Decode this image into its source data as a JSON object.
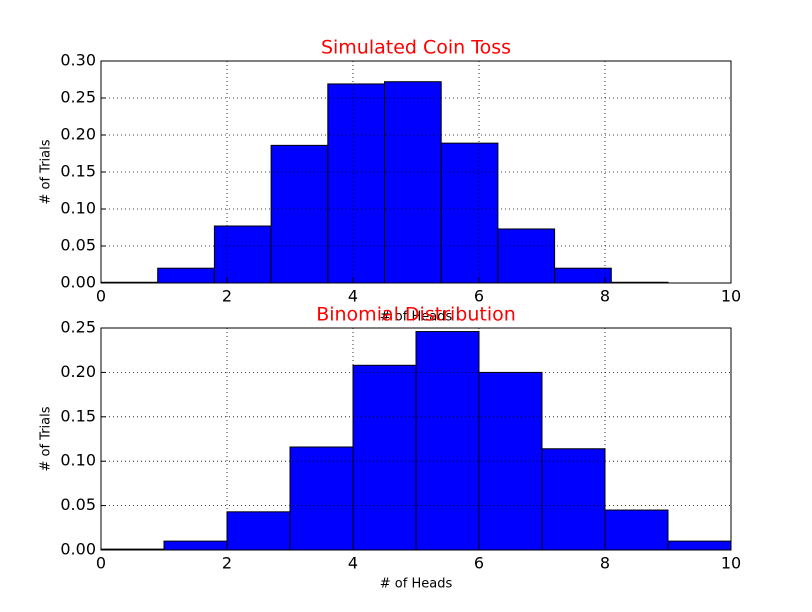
{
  "chart_data": [
    {
      "type": "histogram",
      "title": "Simulated Coin Toss",
      "xlabel": "# of Heads",
      "ylabel": "# of Trials",
      "bins": [
        0,
        0.9,
        1.8,
        2.7,
        3.6,
        4.5,
        5.4,
        6.3,
        7.2,
        8.1,
        9.0
      ],
      "values": [
        0.001,
        0.02,
        0.077,
        0.186,
        0.269,
        0.272,
        0.189,
        0.073,
        0.02,
        0.001
      ],
      "color": "#0000ff",
      "title_color": "#ff0000",
      "xlim": [
        0,
        10
      ],
      "xticks": [
        0,
        2,
        4,
        6,
        8,
        10
      ],
      "ylim": [
        0,
        0.3
      ],
      "yticks": [
        {
          "value": 0,
          "label": "0.00"
        },
        0.05,
        {
          "value": 0.1,
          "label": "0.10"
        },
        0.15,
        {
          "value": 0.2,
          "label": "0.20"
        },
        0.25,
        {
          "value": 0.3,
          "label": "0.30"
        }
      ],
      "grid": true
    },
    {
      "type": "histogram",
      "title": "Binomial Distribution",
      "xlabel": "# of Heads",
      "ylabel": "# of Trials",
      "bins": [
        0,
        1,
        2,
        3,
        4,
        5,
        6,
        7,
        8,
        9,
        10
      ],
      "values": [
        0.001,
        0.01,
        0.043,
        0.116,
        0.208,
        0.246,
        0.2,
        0.114,
        0.045,
        0.01
      ],
      "color": "#0000ff",
      "title_color": "#ff0000",
      "xlim": [
        0,
        10
      ],
      "xticks": [
        0,
        2,
        4,
        6,
        8,
        10
      ],
      "ylim": [
        0,
        0.25
      ],
      "yticks": [
        {
          "value": 0,
          "label": "0.00"
        },
        0.05,
        {
          "value": 0.1,
          "label": "0.10"
        },
        0.15,
        {
          "value": 0.2,
          "label": "0.20"
        },
        0.25
      ],
      "grid": true
    }
  ]
}
